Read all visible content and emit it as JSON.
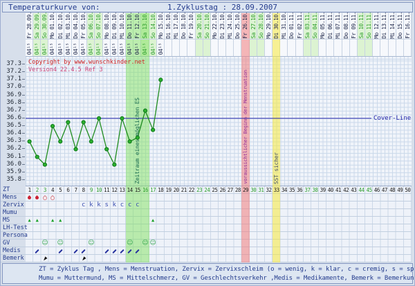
{
  "header": {
    "title_left": "Temperaturkurve von:",
    "title_right": "1.Zyklustag : 28.09.2007"
  },
  "copyright": {
    "line1": "Copyright by www.wunschkinder.net",
    "line2": "Version4 22.4.5 Ref 3"
  },
  "cover_line": {
    "label": "Cover-Line",
    "value": 36.6
  },
  "annotations": {
    "fertile": "Zeitraum eines möglichen ES",
    "mens_expected": "voraussichtlicher Beginn der Menstruation",
    "sst": "SST sicher"
  },
  "days": {
    "labels": [
      "Fr 28.09.",
      "Sa 29.09.",
      "So 30.09.",
      "Mo 01.10.",
      "Di 02.10.",
      "Mi 03.10.",
      "Do 04.10.",
      "Fr 05.10.",
      "Sa 06.10.",
      "So 07.10.",
      "Mo 08.10.",
      "Di 09.10.",
      "Mi 10.10.",
      "Do 11.10.",
      "Fr 12.10.",
      "Sa 13.10.",
      "So 14.10.",
      "Mo 15.10.",
      "Di 16.10.",
      "Mi 17.10.",
      "Do 18.10.",
      "Fr 19.10.",
      "Sa 20.10.",
      "So 21.10.",
      "Mo 22.10.",
      "Di 23.10.",
      "Mi 24.10.",
      "Do 25.10.",
      "Fr 26.10.",
      "Sa 27.10.",
      "So 28.10.",
      "Mo 29.10.",
      "Di 30.10.",
      "Mi 31.10.",
      "Do 01.11.",
      "Fr 02.11.",
      "Sa 03.11.",
      "So 04.11.",
      "Mo 05.11.",
      "Di 06.11.",
      "Mi 07.11.",
      "Do 08.11.",
      "Fr 09.11.",
      "Sa 10.11.",
      "So 11.11.",
      "Mo 12.11.",
      "Di 13.11.",
      "Mi 14.11.",
      "Do 15.11.",
      "Fr 16.11."
    ],
    "measure_time": "04¹⁵",
    "measured_days": 18,
    "fertile_days": [
      14,
      15,
      16
    ],
    "expected_mens_day": 29,
    "sst_day": 33
  },
  "chart_data": {
    "type": "line",
    "title": "Temperaturkurve von: 1.Zyklustag : 28.09.2007",
    "x": [
      1,
      2,
      3,
      4,
      5,
      6,
      7,
      8,
      9,
      10,
      11,
      12,
      13,
      14,
      15,
      16,
      17,
      18
    ],
    "series": [
      {
        "name": "Temperaturkurve",
        "values": [
          36.3,
          36.1,
          36.0,
          36.5,
          36.3,
          36.55,
          36.2,
          36.55,
          36.3,
          36.6,
          36.2,
          36.0,
          36.6,
          36.3,
          36.35,
          36.7,
          36.45,
          37.1
        ]
      }
    ],
    "yticks": [
      "37.3",
      "37.2",
      "37.1",
      "37.0",
      "36.9",
      "36.8",
      "36.7",
      "36.6",
      "36.5",
      "36.4",
      "36.3",
      "36.2",
      "36.1",
      "36.0",
      "35.9",
      "35.8"
    ],
    "ylim": [
      35.75,
      37.35
    ],
    "xlim_days": 50,
    "grid": true,
    "cover_line_y": 36.6,
    "annotations": [
      "Zeitraum eines möglichen ES (Tage 14-16)",
      "voraussichtlicher Beginn der Menstruation (Tag 29)",
      "SST sicher (Tag 33)"
    ]
  },
  "table": {
    "row_labels": [
      "ZT",
      "Mens",
      "Zervix",
      "Mumu",
      "MS",
      "LH-Test",
      "Persona",
      "GV",
      "Medis",
      "Bemerk"
    ],
    "mens": {
      "filled_days": [
        1,
        2
      ],
      "light_days": [
        3,
        4
      ]
    },
    "zervix": {
      "days": [
        8,
        9,
        10,
        11,
        12,
        13,
        14,
        15
      ],
      "letters": [
        "c",
        "k",
        "k",
        "s",
        "k",
        "c",
        "c",
        "c"
      ]
    },
    "ms_days": [
      1,
      2,
      4,
      5,
      17
    ],
    "gv_days": [
      3,
      5,
      9,
      14,
      16,
      17
    ],
    "gv_symbol": "☺",
    "medis_days": [
      2,
      5,
      7,
      8,
      11,
      12,
      13,
      14,
      15
    ],
    "bemerk_days": [
      3,
      8
    ]
  },
  "icons": {
    "mens": "drop-icon",
    "ms": "triangle-icon",
    "gv": "smiley-icon",
    "medis": "pen-icon",
    "bemerk": "hand-icon"
  },
  "legend": {
    "line1": "ZT = Zyklus Tag , Mens = Menstruation, Zervix = Zervixschleim (o = wenig, k = klar, c = cremig, s = spinnbar)",
    "line2": "Mumu = Muttermund, MS = Mittelschmerz, GV = Geschlechtsverkehr ,Medis = Medikamente, Bemerk = Bemerkungen"
  },
  "colors": {
    "line_green": "#1f8c1f",
    "point_green": "#2cae2c",
    "cover_navy": "#2424aa",
    "mens_red": "#cc2233",
    "weekend_green": "#2e9e2e",
    "fertile_bg": "#bdeca4",
    "mens_expected_bg": "#f5b9b9",
    "sst_bg": "#f6ec86",
    "copyright_red": "#cc2222"
  }
}
